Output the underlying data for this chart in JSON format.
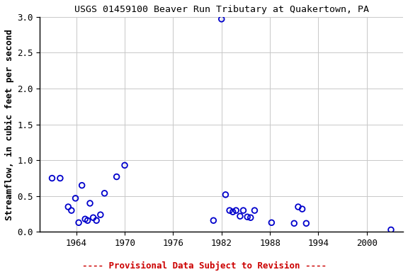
{
  "title": "USGS 01459100 Beaver Run Tributary at Quakertown, PA",
  "ylabel": "Streamflow, in cubic feet per second",
  "xlim": [
    1959.5,
    2004.5
  ],
  "ylim": [
    0.0,
    3.0
  ],
  "xticks": [
    1964,
    1970,
    1976,
    1982,
    1988,
    1994,
    2000
  ],
  "yticks": [
    0.0,
    0.5,
    1.0,
    1.5,
    2.0,
    2.5,
    3.0
  ],
  "x_data": [
    1961.0,
    1962.0,
    1963.0,
    1963.4,
    1963.9,
    1964.3,
    1964.7,
    1965.1,
    1965.4,
    1965.7,
    1966.1,
    1966.5,
    1967.0,
    1967.5,
    1969.0,
    1970.0,
    1981.0,
    1982.0,
    1982.5,
    1983.0,
    1983.4,
    1983.8,
    1984.3,
    1984.7,
    1985.2,
    1985.6,
    1986.1,
    1988.2,
    1991.0,
    1991.5,
    1992.0,
    1992.5,
    2003.0
  ],
  "y_data": [
    0.75,
    0.75,
    0.35,
    0.3,
    0.47,
    0.13,
    0.65,
    0.18,
    0.16,
    0.4,
    0.2,
    0.16,
    0.24,
    0.54,
    0.77,
    0.93,
    0.16,
    2.97,
    0.52,
    0.3,
    0.28,
    0.3,
    0.22,
    0.3,
    0.21,
    0.2,
    0.3,
    0.13,
    0.12,
    0.35,
    0.32,
    0.12,
    0.03
  ],
  "marker_color": "#0000cc",
  "marker_size": 5.5,
  "marker_linewidth": 1.3,
  "grid_color": "#c8c8c8",
  "bg_color": "#ffffff",
  "title_fontsize": 9.5,
  "label_fontsize": 9.0,
  "tick_fontsize": 9.0,
  "provisional_text": "---- Provisional Data Subject to Revision ----",
  "provisional_color": "#cc0000",
  "provisional_fontsize": 9.0
}
